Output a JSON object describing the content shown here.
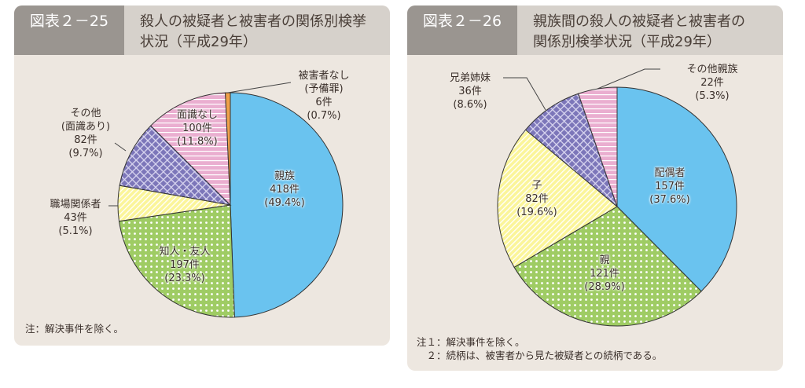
{
  "chart_data": [
    {
      "type": "pie",
      "id": "2-25",
      "number": "図表２－25",
      "title": "殺人の被疑者と被害者の関係別検挙状況（平成29年）",
      "slices": [
        {
          "label": "親族",
          "count": 418,
          "count_text": "418件",
          "percent": 49.4,
          "percent_text": "(49.4%)",
          "color": "#6ac3ef",
          "pattern": "solid"
        },
        {
          "label": "知人・友人",
          "count": 197,
          "count_text": "197件",
          "percent": 23.3,
          "percent_text": "(23.3%)",
          "color": "#9fcc64",
          "pattern": "dots"
        },
        {
          "label": "職場関係者",
          "count": 43,
          "count_text": "43件",
          "percent": 5.1,
          "percent_text": "(5.1%)",
          "color": "#fbf59a",
          "pattern": "diagonal"
        },
        {
          "label": "その他（面識あり）",
          "label_lines": [
            "その他",
            "(面識あり)"
          ],
          "count": 82,
          "count_text": "82件",
          "percent": 9.7,
          "percent_text": "(9.7%)",
          "color": "#7c76b9",
          "pattern": "check"
        },
        {
          "label": "面識なし",
          "count": 100,
          "count_text": "100件",
          "percent": 11.8,
          "percent_text": "(11.8%)",
          "color": "#eaaed0",
          "pattern": "hstripe"
        },
        {
          "label": "被害者なし（予備罪）",
          "label_lines": [
            "被害者なし",
            "(予備罪)"
          ],
          "count": 6,
          "count_text": "6件",
          "percent": 0.7,
          "percent_text": "(0.7%)",
          "color": "#f0a04a",
          "pattern": "solid"
        }
      ],
      "notes": [
        "注：解決事件を除く。"
      ]
    },
    {
      "type": "pie",
      "id": "2-26",
      "number": "図表２－26",
      "title": "親族間の殺人の被疑者と被害者の関係別検挙状況（平成29年）",
      "title_lines": [
        "親族間の殺人の被疑者と被害者の",
        "関係別検挙状況（平成29年）"
      ],
      "slices": [
        {
          "label": "配偶者",
          "count": 157,
          "count_text": "157件",
          "percent": 37.6,
          "percent_text": "(37.6%)",
          "color": "#6ac3ef",
          "pattern": "solid"
        },
        {
          "label": "親",
          "count": 121,
          "count_text": "121件",
          "percent": 28.9,
          "percent_text": "(28.9%)",
          "color": "#9fcc64",
          "pattern": "dots"
        },
        {
          "label": "子",
          "count": 82,
          "count_text": "82件",
          "percent": 19.6,
          "percent_text": "(19.6%)",
          "color": "#fbf59a",
          "pattern": "diagonal"
        },
        {
          "label": "兄弟姉妹",
          "count": 36,
          "count_text": "36件",
          "percent": 8.6,
          "percent_text": "(8.6%)",
          "color": "#7c76b9",
          "pattern": "check"
        },
        {
          "label": "その他親族",
          "count": 22,
          "count_text": "22件",
          "percent": 5.3,
          "percent_text": "(5.3%)",
          "color": "#eaaed0",
          "pattern": "hstripe"
        }
      ],
      "notes": [
        "注１：解決事件を除く。",
        "　２：続柄は、被害者から見た被疑者との続柄である。"
      ]
    }
  ],
  "left_title_lines": [
    "殺人の被疑者と被害者の関係別検挙",
    "状況（平成29年）"
  ]
}
